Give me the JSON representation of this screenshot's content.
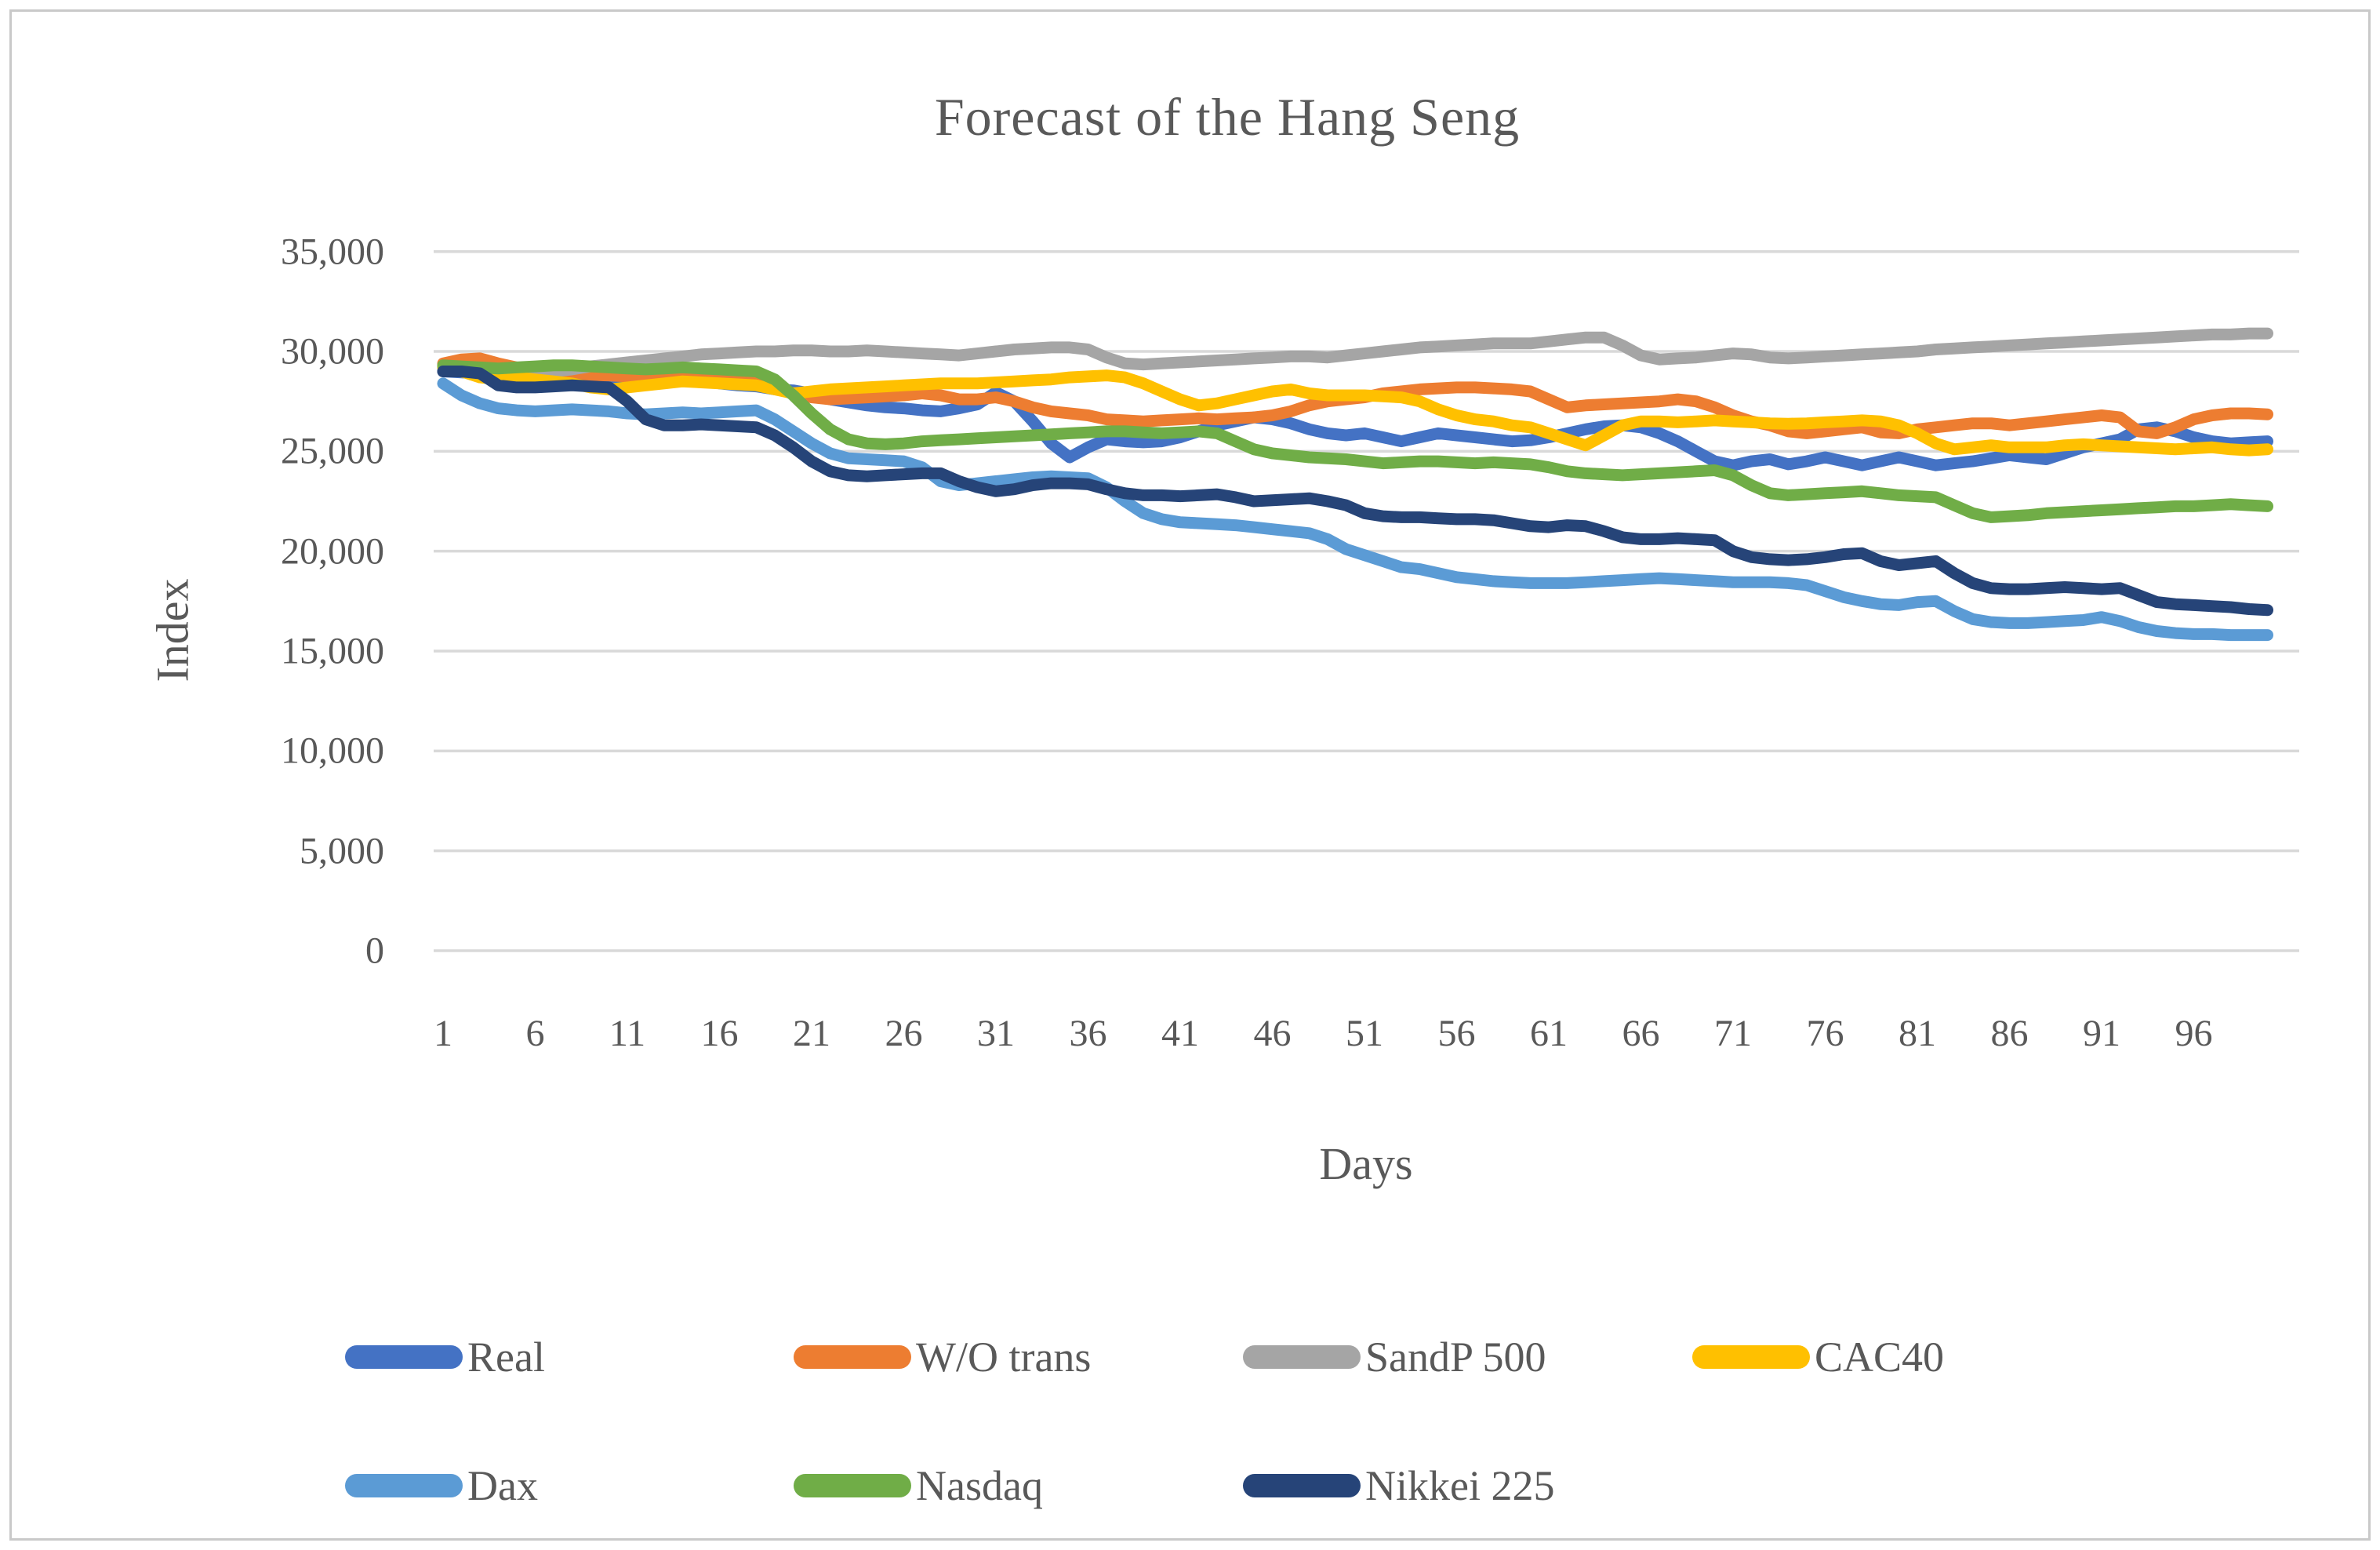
{
  "chart_data": {
    "type": "line",
    "title": "Forecast of the Hang Seng",
    "xlabel": "Days",
    "ylabel": "Index",
    "x_tick_labels": [
      "1",
      "6",
      "11",
      "16",
      "21",
      "26",
      "31",
      "36",
      "41",
      "46",
      "51",
      "56",
      "61",
      "66",
      "71",
      "76",
      "81",
      "86",
      "91",
      "96"
    ],
    "x_ticks": [
      1,
      6,
      11,
      16,
      21,
      26,
      31,
      36,
      41,
      46,
      51,
      56,
      61,
      66,
      71,
      76,
      81,
      86,
      91,
      96
    ],
    "y_ticks": [
      0,
      5000,
      10000,
      15000,
      20000,
      25000,
      30000,
      35000
    ],
    "y_tick_labels": [
      "0",
      "5,000",
      "10,000",
      "15,000",
      "20,000",
      "25,000",
      "30,000",
      "35,000"
    ],
    "ylim": [
      0,
      35000
    ],
    "xlim": [
      1,
      100
    ],
    "grid": "horizontal",
    "gridline_color": "#d9d9d9",
    "text_color": "#595959",
    "legend_position": "bottom",
    "x_days": "1 to 100, step 1",
    "series": [
      {
        "name": "Real",
        "color": "#4472C4",
        "values": [
          29000,
          28950,
          28900,
          28800,
          28750,
          28700,
          28700,
          28650,
          28550,
          28500,
          28500,
          28550,
          28600,
          28650,
          28600,
          28400,
          28300,
          28250,
          28100,
          28050,
          27900,
          27600,
          27450,
          27300,
          27200,
          27150,
          27050,
          27000,
          27150,
          27350,
          27950,
          27500,
          26500,
          25400,
          24700,
          25200,
          25600,
          25500,
          25450,
          25500,
          25700,
          26000,
          26300,
          26500,
          26700,
          26600,
          26400,
          26100,
          25900,
          25800,
          25900,
          25700,
          25500,
          25700,
          25900,
          25800,
          25700,
          25600,
          25500,
          25550,
          25700,
          25900,
          26100,
          26250,
          26300,
          26200,
          25900,
          25500,
          25000,
          24500,
          24300,
          24500,
          24600,
          24350,
          24500,
          24700,
          24500,
          24300,
          24500,
          24700,
          24500,
          24300,
          24400,
          24500,
          24650,
          24800,
          24700,
          24600,
          24900,
          25200,
          25400,
          25600,
          26100,
          26200,
          26000,
          25700,
          25500,
          25400,
          25450,
          25500
        ]
      },
      {
        "name": "W/O trans",
        "color": "#ED7D31",
        "values": [
          29400,
          29600,
          29650,
          29400,
          29200,
          29100,
          29000,
          28900,
          28800,
          28800,
          28750,
          28700,
          28750,
          28800,
          28700,
          28600,
          28500,
          28450,
          28200,
          27900,
          27700,
          27600,
          27650,
          27700,
          27750,
          27800,
          27900,
          27800,
          27600,
          27600,
          27700,
          27500,
          27200,
          27000,
          26900,
          26800,
          26600,
          26550,
          26500,
          26550,
          26600,
          26650,
          26600,
          26650,
          26700,
          26800,
          27000,
          27300,
          27500,
          27600,
          27700,
          27900,
          28000,
          28100,
          28150,
          28200,
          28200,
          28150,
          28100,
          28000,
          27600,
          27200,
          27300,
          27350,
          27400,
          27450,
          27500,
          27600,
          27500,
          27200,
          26800,
          26500,
          26300,
          26000,
          25900,
          26000,
          26100,
          26200,
          25950,
          25900,
          26100,
          26200,
          26300,
          26400,
          26400,
          26300,
          26400,
          26500,
          26600,
          26700,
          26800,
          26700,
          26000,
          25900,
          26200,
          26600,
          26800,
          26900,
          26900,
          26850
        ]
      },
      {
        "name": "SandP 500",
        "color": "#A5A5A5",
        "values": [
          29200,
          29000,
          28800,
          28700,
          28800,
          28900,
          29000,
          29100,
          29250,
          29350,
          29450,
          29550,
          29650,
          29750,
          29850,
          29900,
          29950,
          30000,
          30000,
          30050,
          30050,
          30000,
          30000,
          30050,
          30000,
          29950,
          29900,
          29850,
          29800,
          29900,
          30000,
          30100,
          30150,
          30200,
          30200,
          30100,
          29700,
          29400,
          29350,
          29400,
          29450,
          29500,
          29550,
          29600,
          29650,
          29700,
          29750,
          29750,
          29700,
          29800,
          29900,
          30000,
          30100,
          30200,
          30250,
          30300,
          30350,
          30400,
          30400,
          30400,
          30500,
          30600,
          30700,
          30700,
          30300,
          29800,
          29600,
          29650,
          29700,
          29800,
          29900,
          29850,
          29700,
          29650,
          29700,
          29750,
          29800,
          29850,
          29900,
          29950,
          30000,
          30100,
          30150,
          30200,
          30250,
          30300,
          30350,
          30400,
          30450,
          30500,
          30550,
          30600,
          30650,
          30700,
          30750,
          30800,
          30850,
          30850,
          30900,
          30900
        ]
      },
      {
        "name": "CAC40",
        "color": "#FFC000",
        "values": [
          29200,
          29000,
          28700,
          28600,
          28700,
          28600,
          28500,
          28400,
          28200,
          28100,
          28200,
          28300,
          28400,
          28500,
          28450,
          28400,
          28350,
          28300,
          28100,
          27900,
          28000,
          28100,
          28150,
          28200,
          28250,
          28300,
          28350,
          28400,
          28400,
          28400,
          28450,
          28500,
          28550,
          28600,
          28700,
          28750,
          28800,
          28700,
          28400,
          28000,
          27600,
          27300,
          27400,
          27600,
          27800,
          28000,
          28100,
          27900,
          27800,
          27800,
          27800,
          27750,
          27700,
          27500,
          27100,
          26800,
          26600,
          26500,
          26300,
          26200,
          25900,
          25600,
          25300,
          25800,
          26300,
          26500,
          26500,
          26450,
          26500,
          26550,
          26500,
          26450,
          26400,
          26380,
          26400,
          26450,
          26500,
          26550,
          26500,
          26300,
          25900,
          25400,
          25100,
          25200,
          25300,
          25200,
          25200,
          25200,
          25300,
          25350,
          25300,
          25250,
          25200,
          25150,
          25100,
          25150,
          25200,
          25100,
          25050,
          25100
        ]
      },
      {
        "name": "Dax",
        "color": "#5B9BD5",
        "values": [
          28400,
          27800,
          27400,
          27150,
          27050,
          27000,
          27050,
          27100,
          27050,
          27000,
          26900,
          26850,
          26900,
          26950,
          26900,
          26950,
          27000,
          27050,
          26600,
          26000,
          25400,
          24900,
          24650,
          24600,
          24550,
          24500,
          24200,
          23500,
          23300,
          23400,
          23500,
          23600,
          23700,
          23750,
          23700,
          23650,
          23200,
          22500,
          21900,
          21600,
          21450,
          21400,
          21350,
          21300,
          21200,
          21100,
          21000,
          20900,
          20600,
          20100,
          19800,
          19500,
          19200,
          19100,
          18900,
          18700,
          18600,
          18500,
          18450,
          18400,
          18400,
          18400,
          18450,
          18500,
          18550,
          18600,
          18650,
          18600,
          18550,
          18500,
          18450,
          18450,
          18450,
          18400,
          18300,
          18000,
          17700,
          17500,
          17350,
          17300,
          17450,
          17500,
          17000,
          16600,
          16450,
          16400,
          16400,
          16450,
          16500,
          16550,
          16700,
          16500,
          16200,
          16000,
          15900,
          15850,
          15850,
          15800,
          15800,
          15800
        ]
      },
      {
        "name": "Nasdaq",
        "color": "#70AD47",
        "values": [
          29300,
          29250,
          29200,
          29150,
          29200,
          29250,
          29300,
          29300,
          29250,
          29200,
          29150,
          29100,
          29150,
          29200,
          29150,
          29100,
          29050,
          29000,
          28600,
          27800,
          26900,
          26100,
          25600,
          25400,
          25350,
          25400,
          25500,
          25550,
          25600,
          25650,
          25700,
          25750,
          25800,
          25850,
          25900,
          25950,
          26000,
          26000,
          25950,
          25900,
          25950,
          26000,
          25900,
          25500,
          25100,
          24900,
          24800,
          24700,
          24650,
          24600,
          24500,
          24400,
          24450,
          24500,
          24500,
          24450,
          24400,
          24450,
          24400,
          24350,
          24200,
          24000,
          23900,
          23850,
          23800,
          23850,
          23900,
          23950,
          24000,
          24050,
          23800,
          23300,
          22900,
          22800,
          22850,
          22900,
          22950,
          23000,
          22900,
          22800,
          22750,
          22700,
          22300,
          21900,
          21700,
          21750,
          21800,
          21900,
          21950,
          22000,
          22050,
          22100,
          22150,
          22200,
          22250,
          22250,
          22300,
          22350,
          22300,
          22250
        ]
      },
      {
        "name": "Nikkei 225",
        "color": "#264478",
        "values": [
          29000,
          29000,
          28900,
          28300,
          28200,
          28200,
          28250,
          28300,
          28250,
          28200,
          27500,
          26600,
          26300,
          26300,
          26350,
          26300,
          26250,
          26200,
          25800,
          25200,
          24500,
          24000,
          23800,
          23750,
          23800,
          23850,
          23900,
          23900,
          23500,
          23200,
          23000,
          23100,
          23300,
          23400,
          23400,
          23350,
          23100,
          22900,
          22800,
          22800,
          22750,
          22800,
          22850,
          22700,
          22500,
          22550,
          22600,
          22650,
          22500,
          22300,
          21900,
          21750,
          21700,
          21700,
          21650,
          21600,
          21600,
          21550,
          21400,
          21250,
          21200,
          21300,
          21250,
          21000,
          20700,
          20600,
          20600,
          20650,
          20600,
          20550,
          20000,
          19700,
          19600,
          19550,
          19600,
          19700,
          19850,
          19900,
          19500,
          19300,
          19400,
          19500,
          18900,
          18400,
          18150,
          18100,
          18100,
          18150,
          18200,
          18150,
          18100,
          18150,
          17800,
          17450,
          17350,
          17300,
          17250,
          17200,
          17100,
          17050
        ]
      }
    ],
    "legend_rows": [
      [
        "Real",
        "W/O trans",
        "SandP 500",
        "CAC40"
      ],
      [
        "Dax",
        "Nasdaq",
        "Nikkei 225"
      ]
    ]
  }
}
